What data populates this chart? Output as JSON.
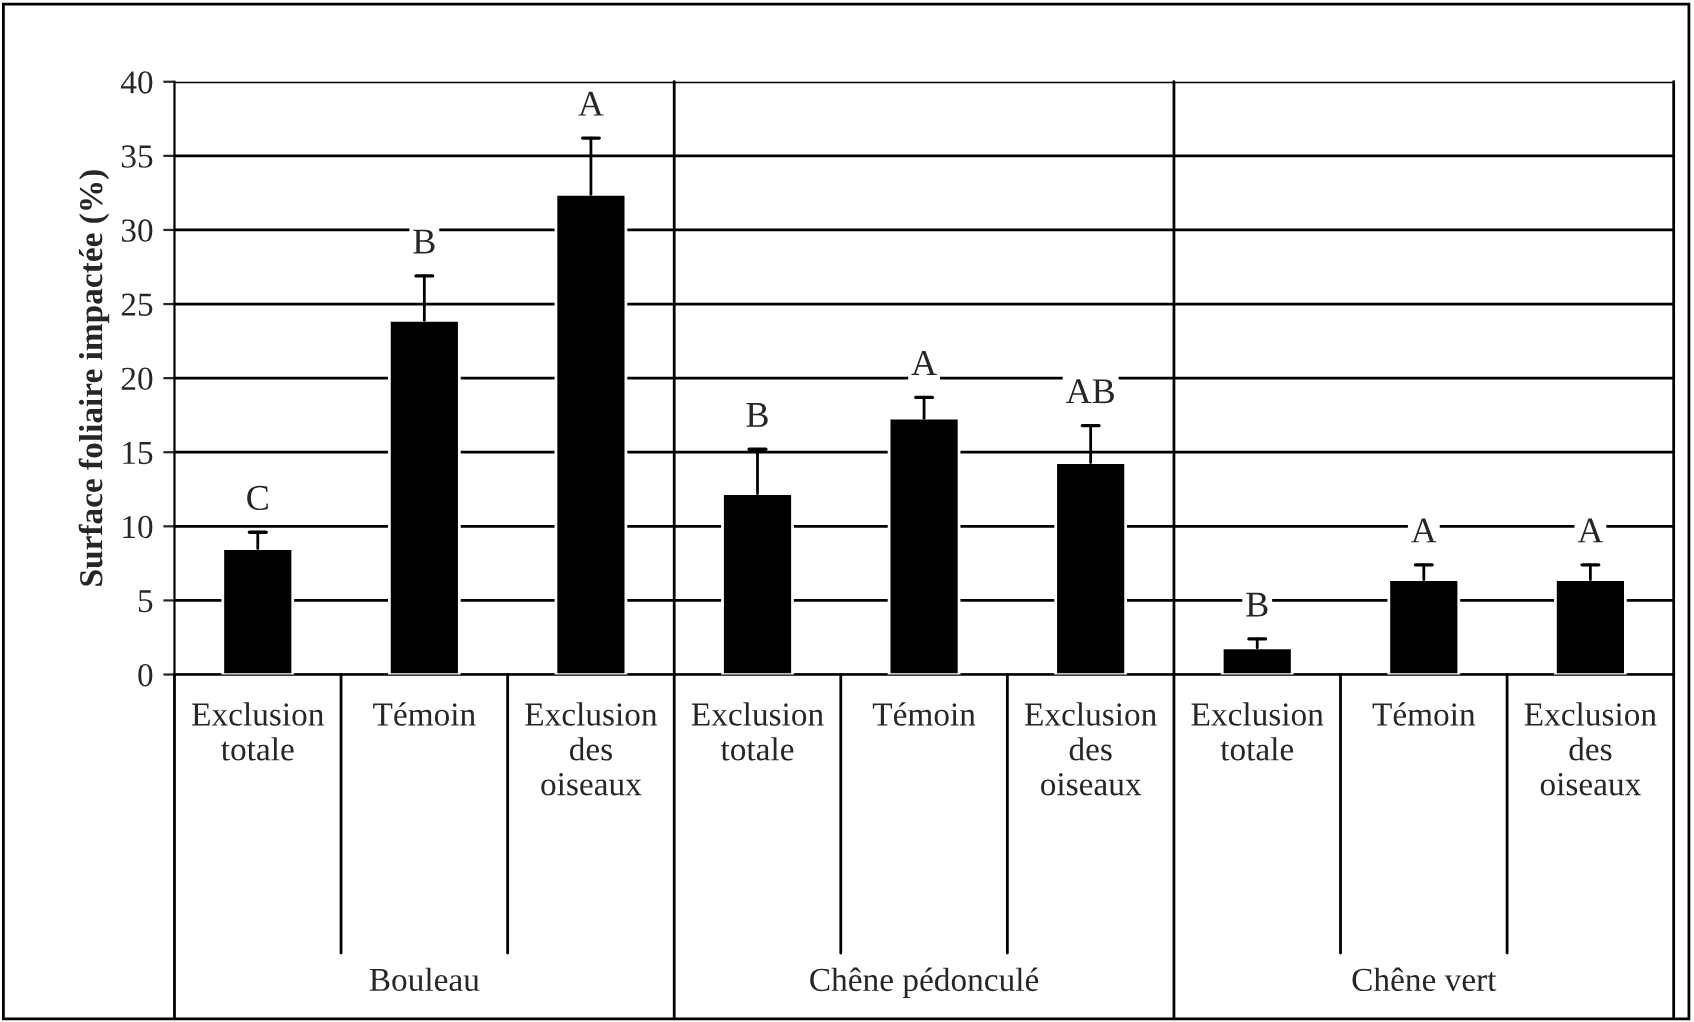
{
  "chart_data": {
    "type": "bar",
    "ylabel": "Surface foliaire impactée (%)",
    "categories": [
      "Exclusion totale",
      "Témoin",
      "Exclusion des oiseaux",
      "Exclusion totale",
      "Témoin",
      "Exclusion des oiseaux",
      "Exclusion totale",
      "Témoin",
      "Exclusion des oiseaux"
    ],
    "series": [
      {
        "color": "#000000",
        "values": [
          8.5,
          23.9,
          32.4,
          12.2,
          17.3,
          14.3,
          1.8,
          6.4,
          6.4
        ],
        "errors": [
          [
            8.5,
            9.6
          ],
          [
            23.9,
            26.9
          ],
          [
            32.4,
            36.2
          ],
          [
            12.2,
            15.2
          ],
          [
            17.3,
            18.7
          ],
          [
            14.3,
            16.8
          ],
          [
            1.8,
            2.4
          ],
          [
            6.4,
            7.4
          ],
          [
            6.4,
            7.4
          ]
        ]
      }
    ],
    "annotations": [
      "C",
      "B",
      "A",
      "B",
      "A",
      "AB",
      "B",
      "A",
      "A",
      "Bouleau",
      "Chêne pédonculé",
      "Chêne vert"
    ],
    "ylim": [
      0,
      40
    ],
    "yticks": [
      0,
      5,
      10,
      15,
      20,
      25,
      30,
      35,
      40
    ],
    "grid": "y"
  }
}
